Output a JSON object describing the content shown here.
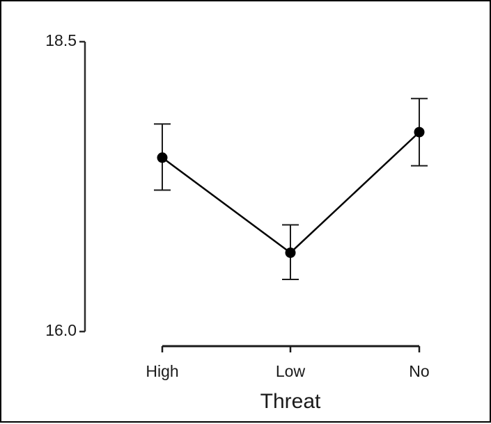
{
  "chart_data": {
    "type": "line",
    "title": "",
    "xlabel": "Threat",
    "ylabel": "",
    "categories": [
      "High",
      "Low",
      "No"
    ],
    "ylim": [
      16.0,
      18.5
    ],
    "yticks": [
      "16.0",
      "18.5"
    ],
    "series": [
      {
        "values": [
          17.5,
          16.68,
          17.72
        ],
        "error_lower": [
          17.22,
          16.45,
          17.43
        ],
        "error_upper": [
          17.79,
          16.92,
          18.01
        ]
      }
    ],
    "grid": false,
    "legend": "none"
  }
}
